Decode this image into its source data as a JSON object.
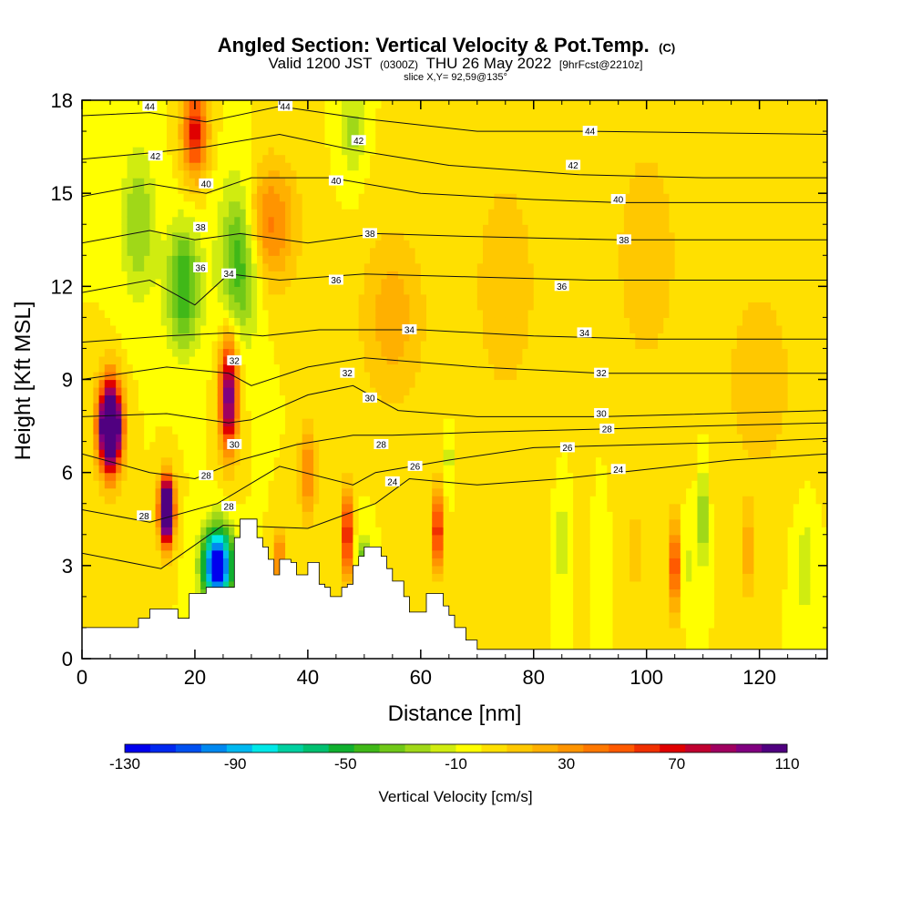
{
  "title": "Angled Section: Vertical Velocity & Pot.Temp.",
  "title_unit": "(C)",
  "subtitle": {
    "valid": "Valid 1200 JST",
    "zulu": "(0300Z)",
    "date": "THU 26 May 2022",
    "forecast": "[9hrFcst@2210z]"
  },
  "slice_label": "slice X,Y= 92,59@135°",
  "chart_data": {
    "type": "heatmap",
    "xlabel": "Distance [nm]",
    "ylabel": "Height [Kft MSL]",
    "xlim": [
      0,
      132
    ],
    "ylim": [
      0,
      18
    ],
    "x_ticks": [
      0,
      20,
      40,
      60,
      80,
      100,
      120
    ],
    "y_ticks": [
      0,
      3,
      6,
      9,
      12,
      15,
      18
    ],
    "colorbar": {
      "label": "Vertical Velocity [cm/s]",
      "range": [
        -130,
        110
      ],
      "step": 10,
      "tick_labels": [
        "-130",
        "-90",
        "-50",
        "-10",
        "30",
        "70",
        "110"
      ],
      "colors": [
        "#0000ee",
        "#0028f0",
        "#0050f0",
        "#0088f0",
        "#00b8f0",
        "#00e8e8",
        "#00d0a0",
        "#00c070",
        "#10b030",
        "#40b818",
        "#70c818",
        "#a0d818",
        "#d0ec10",
        "#ffff00",
        "#ffe000",
        "#ffc800",
        "#ffb000",
        "#ff9400",
        "#ff7800",
        "#ff5a00",
        "#f03000",
        "#e00000",
        "#c00030",
        "#a00060",
        "#800080",
        "#500080"
      ]
    },
    "theta_contours": [
      {
        "value": "24",
        "points": [
          [
            0,
            3.4
          ],
          [
            14,
            2.9
          ],
          [
            25,
            4.3
          ],
          [
            40,
            4.2
          ],
          [
            52,
            5.0
          ],
          [
            58,
            5.8
          ],
          [
            70,
            5.6
          ],
          [
            85,
            5.8
          ],
          [
            100,
            6.1
          ],
          [
            115,
            6.4
          ],
          [
            132,
            6.6
          ]
        ]
      },
      {
        "value": "26",
        "points": [
          [
            0,
            4.8
          ],
          [
            12,
            4.4
          ],
          [
            24,
            5.0
          ],
          [
            35,
            6.2
          ],
          [
            48,
            5.6
          ],
          [
            52,
            6.0
          ],
          [
            65,
            6.4
          ],
          [
            80,
            6.8
          ],
          [
            100,
            6.9
          ],
          [
            120,
            7.0
          ],
          [
            132,
            7.1
          ]
        ]
      },
      {
        "value": "28",
        "points": [
          [
            0,
            6.6
          ],
          [
            12,
            6.0
          ],
          [
            20,
            5.8
          ],
          [
            28,
            6.4
          ],
          [
            38,
            6.9
          ],
          [
            48,
            7.2
          ],
          [
            55,
            7.2
          ],
          [
            70,
            7.3
          ],
          [
            92,
            7.4
          ],
          [
            110,
            7.5
          ],
          [
            132,
            7.6
          ]
        ]
      },
      {
        "value": "30",
        "points": [
          [
            0,
            7.8
          ],
          [
            15,
            7.9
          ],
          [
            26,
            7.6
          ],
          [
            30,
            7.7
          ],
          [
            40,
            8.5
          ],
          [
            48,
            8.8
          ],
          [
            56,
            8.0
          ],
          [
            70,
            7.8
          ],
          [
            92,
            7.8
          ],
          [
            132,
            8.0
          ]
        ]
      },
      {
        "value": "32",
        "points": [
          [
            0,
            9.0
          ],
          [
            15,
            9.4
          ],
          [
            26,
            9.2
          ],
          [
            30,
            8.8
          ],
          [
            40,
            9.4
          ],
          [
            50,
            9.7
          ],
          [
            70,
            9.4
          ],
          [
            92,
            9.2
          ],
          [
            132,
            9.2
          ]
        ]
      },
      {
        "value": "34",
        "points": [
          [
            0,
            10.2
          ],
          [
            15,
            10.4
          ],
          [
            26,
            10.5
          ],
          [
            32,
            10.4
          ],
          [
            42,
            10.6
          ],
          [
            60,
            10.6
          ],
          [
            80,
            10.4
          ],
          [
            100,
            10.3
          ],
          [
            132,
            10.3
          ]
        ]
      },
      {
        "value": "36",
        "points": [
          [
            0,
            11.8
          ],
          [
            12,
            12.2
          ],
          [
            20,
            11.4
          ],
          [
            26,
            12.4
          ],
          [
            35,
            12.2
          ],
          [
            50,
            12.4
          ],
          [
            70,
            12.3
          ],
          [
            90,
            12.2
          ],
          [
            132,
            12.2
          ]
        ]
      },
      {
        "value": "38",
        "points": [
          [
            0,
            13.4
          ],
          [
            12,
            13.8
          ],
          [
            20,
            13.5
          ],
          [
            28,
            13.7
          ],
          [
            40,
            13.4
          ],
          [
            52,
            13.7
          ],
          [
            70,
            13.6
          ],
          [
            95,
            13.5
          ],
          [
            132,
            13.5
          ]
        ]
      },
      {
        "value": "40",
        "points": [
          [
            0,
            14.9
          ],
          [
            12,
            15.3
          ],
          [
            22,
            15.0
          ],
          [
            30,
            15.5
          ],
          [
            44,
            15.5
          ],
          [
            60,
            15.0
          ],
          [
            80,
            14.8
          ],
          [
            95,
            14.7
          ],
          [
            132,
            14.7
          ]
        ]
      },
      {
        "value": "42",
        "points": [
          [
            0,
            16.1
          ],
          [
            12,
            16.3
          ],
          [
            22,
            16.5
          ],
          [
            35,
            16.9
          ],
          [
            48,
            16.4
          ],
          [
            65,
            15.9
          ],
          [
            88,
            15.6
          ],
          [
            110,
            15.5
          ],
          [
            132,
            15.5
          ]
        ]
      },
      {
        "value": "44",
        "points": [
          [
            0,
            17.5
          ],
          [
            12,
            17.6
          ],
          [
            22,
            17.3
          ],
          [
            35,
            17.8
          ],
          [
            50,
            17.4
          ],
          [
            70,
            17.0
          ],
          [
            90,
            17.0
          ],
          [
            132,
            16.9
          ]
        ]
      }
    ],
    "theta_labels": [
      {
        "value": "44",
        "x": 12,
        "y": 17.8
      },
      {
        "value": "44",
        "x": 36,
        "y": 17.8
      },
      {
        "value": "44",
        "x": 90,
        "y": 17.0
      },
      {
        "value": "42",
        "x": 13,
        "y": 16.2
      },
      {
        "value": "42",
        "x": 49,
        "y": 16.7
      },
      {
        "value": "42",
        "x": 87,
        "y": 15.9
      },
      {
        "value": "40",
        "x": 22,
        "y": 15.3
      },
      {
        "value": "40",
        "x": 45,
        "y": 15.4
      },
      {
        "value": "40",
        "x": 95,
        "y": 14.8
      },
      {
        "value": "38",
        "x": 21,
        "y": 13.9
      },
      {
        "value": "38",
        "x": 51,
        "y": 13.7
      },
      {
        "value": "38",
        "x": 96,
        "y": 13.5
      },
      {
        "value": "36",
        "x": 21,
        "y": 12.6
      },
      {
        "value": "36",
        "x": 45,
        "y": 12.2
      },
      {
        "value": "36",
        "x": 85,
        "y": 12.0
      },
      {
        "value": "34",
        "x": 26,
        "y": 12.4
      },
      {
        "value": "34",
        "x": 58,
        "y": 10.6
      },
      {
        "value": "34",
        "x": 89,
        "y": 10.5
      },
      {
        "value": "32",
        "x": 27,
        "y": 9.6
      },
      {
        "value": "32",
        "x": 47,
        "y": 9.2
      },
      {
        "value": "32",
        "x": 92,
        "y": 9.2
      },
      {
        "value": "30",
        "x": 51,
        "y": 8.4
      },
      {
        "value": "30",
        "x": 92,
        "y": 7.9
      },
      {
        "value": "30",
        "x": 27,
        "y": 6.9
      },
      {
        "value": "28",
        "x": 53,
        "y": 6.9
      },
      {
        "value": "28",
        "x": 93,
        "y": 7.4
      },
      {
        "value": "28",
        "x": 22,
        "y": 5.9
      },
      {
        "value": "28",
        "x": 26,
        "y": 4.9
      },
      {
        "value": "28",
        "x": 11,
        "y": 4.6
      },
      {
        "value": "26",
        "x": 59,
        "y": 6.2
      },
      {
        "value": "26",
        "x": 86,
        "y": 6.8
      },
      {
        "value": "24",
        "x": 55,
        "y": 5.7
      },
      {
        "value": "24",
        "x": 95,
        "y": 6.1
      }
    ],
    "terrain": [
      [
        0,
        1.0
      ],
      [
        5,
        1.0
      ],
      [
        10,
        1.3
      ],
      [
        12,
        1.6
      ],
      [
        15,
        1.6
      ],
      [
        17,
        1.3
      ],
      [
        19,
        2.1
      ],
      [
        21,
        2.1
      ],
      [
        22,
        2.3
      ],
      [
        25,
        2.3
      ],
      [
        27,
        3.9
      ],
      [
        28,
        4.5
      ],
      [
        30,
        4.5
      ],
      [
        31,
        3.9
      ],
      [
        32,
        3.6
      ],
      [
        33,
        3.2
      ],
      [
        34,
        2.7
      ],
      [
        35,
        3.2
      ],
      [
        36,
        3.2
      ],
      [
        37,
        3.1
      ],
      [
        38,
        2.7
      ],
      [
        39,
        2.7
      ],
      [
        40,
        3.1
      ],
      [
        42,
        2.4
      ],
      [
        43,
        2.3
      ],
      [
        44,
        2.0
      ],
      [
        45,
        2.0
      ],
      [
        46,
        2.3
      ],
      [
        47,
        2.4
      ],
      [
        48,
        3.0
      ],
      [
        49,
        3.3
      ],
      [
        50,
        3.6
      ],
      [
        52,
        3.6
      ],
      [
        53,
        3.3
      ],
      [
        54,
        2.9
      ],
      [
        55,
        2.5
      ],
      [
        57,
        2.0
      ],
      [
        58,
        1.5
      ],
      [
        60,
        1.5
      ],
      [
        61,
        2.1
      ],
      [
        63,
        2.1
      ],
      [
        64,
        1.7
      ],
      [
        65,
        1.4
      ],
      [
        66,
        1.0
      ],
      [
        68,
        0.6
      ],
      [
        70,
        0.3
      ],
      [
        132,
        0.3
      ]
    ],
    "w_features": [
      {
        "x": 5,
        "y": 7.5,
        "w": 200,
        "sx": 2.0,
        "sy": 1.4
      },
      {
        "x": 15,
        "y": 4.8,
        "w": 200,
        "sx": 1.2,
        "sy": 1.0
      },
      {
        "x": 26,
        "y": 8.5,
        "w": 115,
        "sx": 1.6,
        "sy": 1.8
      },
      {
        "x": 20,
        "y": 17.0,
        "w": 75,
        "sx": 2.2,
        "sy": 1.5
      },
      {
        "x": 33,
        "y": 14.0,
        "w": 45,
        "sx": 5.0,
        "sy": 2.0
      },
      {
        "x": 24,
        "y": 3.0,
        "w": -150,
        "sx": 2.5,
        "sy": 1.2
      },
      {
        "x": 28,
        "y": 13.0,
        "w": -55,
        "sx": 3.5,
        "sy": 2.5
      },
      {
        "x": 18,
        "y": 12.0,
        "w": -50,
        "sx": 3.0,
        "sy": 2.0
      },
      {
        "x": 10,
        "y": 14.0,
        "w": -30,
        "sx": 3.0,
        "sy": 2.5
      },
      {
        "x": 48,
        "y": 17.0,
        "w": -25,
        "sx": 2.0,
        "sy": 1.5
      },
      {
        "x": 47,
        "y": 4.0,
        "w": 90,
        "sx": 0.8,
        "sy": 1.5
      },
      {
        "x": 50,
        "y": 2.5,
        "w": -70,
        "sx": 1.2,
        "sy": 1.2
      },
      {
        "x": 63,
        "y": 4.2,
        "w": 90,
        "sx": 0.8,
        "sy": 1.3
      },
      {
        "x": 65,
        "y": 6.5,
        "w": -25,
        "sx": 0.6,
        "sy": 0.8
      },
      {
        "x": 85,
        "y": 3.8,
        "w": -25,
        "sx": 0.8,
        "sy": 1.3
      },
      {
        "x": 105,
        "y": 3.0,
        "w": 70,
        "sx": 0.9,
        "sy": 1.5
      },
      {
        "x": 107,
        "y": 3.0,
        "w": -25,
        "sx": 0.6,
        "sy": 1.2
      },
      {
        "x": 110,
        "y": 4.5,
        "w": -45,
        "sx": 0.7,
        "sy": 1.5
      },
      {
        "x": 118,
        "y": 3.5,
        "w": 35,
        "sx": 0.8,
        "sy": 1.5
      },
      {
        "x": 40,
        "y": 6.0,
        "w": 45,
        "sx": 1.5,
        "sy": 1.5
      },
      {
        "x": 35,
        "y": 3.2,
        "w": 55,
        "sx": 0.8,
        "sy": 1.0
      },
      {
        "x": 55,
        "y": 11.0,
        "w": 25,
        "sx": 6.0,
        "sy": 3.0
      },
      {
        "x": 75,
        "y": 12.0,
        "w": 18,
        "sx": 6.0,
        "sy": 4.0
      },
      {
        "x": 100,
        "y": 13.0,
        "w": 18,
        "sx": 6.0,
        "sy": 4.0
      },
      {
        "x": 120,
        "y": 9.0,
        "w": 20,
        "sx": 6.0,
        "sy": 3.0
      },
      {
        "x": 92,
        "y": 3.5,
        "w": -15,
        "sx": 0.7,
        "sy": 1.5
      },
      {
        "x": 98,
        "y": 3.5,
        "w": 25,
        "sx": 0.7,
        "sy": 1.5
      },
      {
        "x": 128,
        "y": 3.0,
        "w": -20,
        "sx": 1.5,
        "sy": 1.5
      }
    ],
    "w_base": 10
  }
}
